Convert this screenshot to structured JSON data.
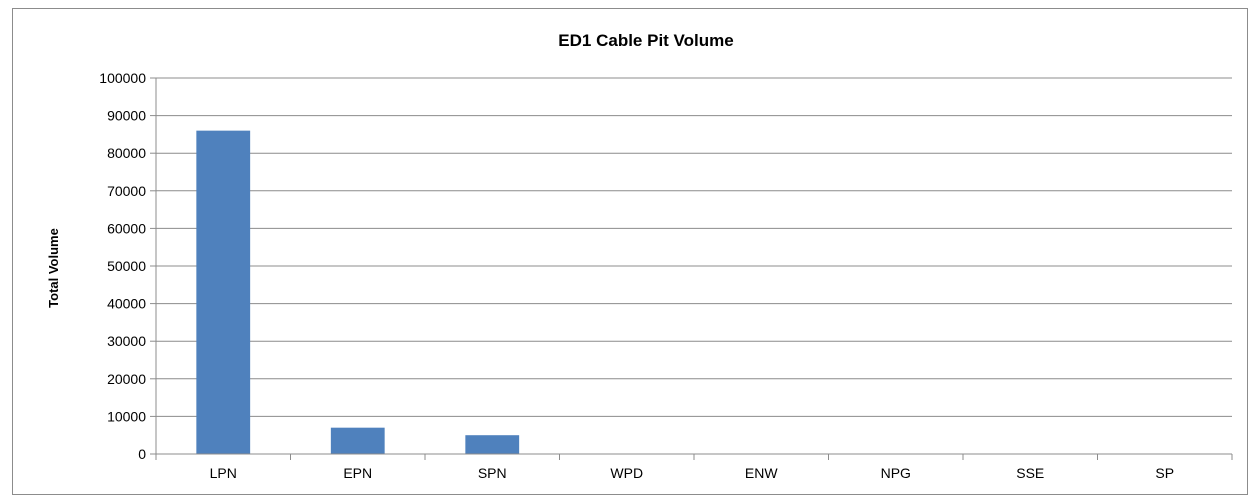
{
  "chart_data": {
    "type": "bar",
    "title": "ED1 Cable Pit Volume",
    "xlabel": "",
    "ylabel": "Total Volume",
    "categories": [
      "LPN",
      "EPN",
      "SPN",
      "WPD",
      "ENW",
      "NPG",
      "SSE",
      "SP"
    ],
    "values": [
      86000,
      7000,
      5000,
      0,
      0,
      0,
      0,
      0
    ],
    "ylim": [
      0,
      100000
    ],
    "yticks": [
      "0",
      "10000",
      "20000",
      "30000",
      "40000",
      "50000",
      "60000",
      "70000",
      "80000",
      "90000",
      "100000"
    ],
    "grid": true,
    "legend": "none",
    "bar_color": "#4f81bd"
  }
}
